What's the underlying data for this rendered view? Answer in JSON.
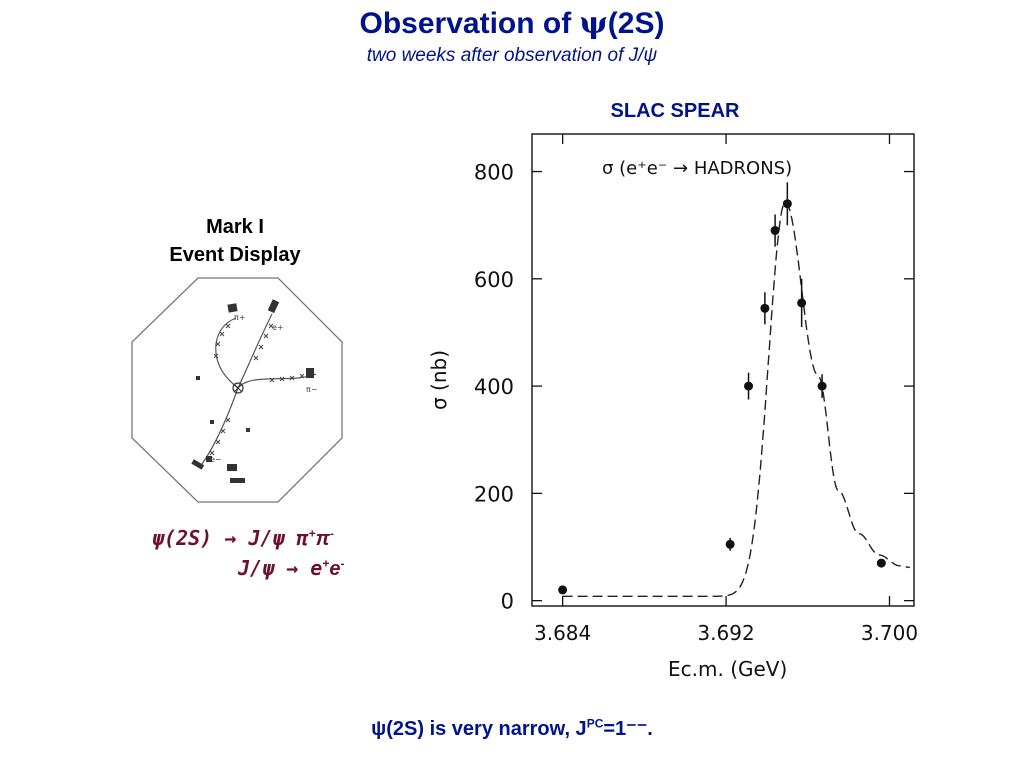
{
  "colors": {
    "title": "#00128c",
    "decay": "#6e0f2b",
    "text": "#000000"
  },
  "slide": {
    "title_main": "Observation of ",
    "title_psi": "ψ",
    "title_tail": "(2S)",
    "subtitle": "two weeks after observation of J/ψ",
    "plot_heading": "SLAC SPEAR",
    "event_label_line1": "Mark I",
    "event_label_line2": "Event Display",
    "decay_line1": "ψ(2S) → J/ψ π",
    "decay_line1_sup1": "+",
    "decay_line1_mid": "π",
    "decay_line1_sup2": "-",
    "decay_line2": "J/ψ → e",
    "decay_line2_sup1": "+",
    "decay_line2_mid": "e",
    "decay_line2_sup2": "-",
    "conclusion_main": "ψ(2S) is very narrow, J",
    "conclusion_sup": "PC",
    "conclusion_tail": "=1⁻⁻."
  },
  "event_display": {
    "labels": {
      "pi_plus": "π+",
      "e_plus": "e+",
      "pi_minus": "π−",
      "e_minus": "e−"
    }
  },
  "chart_data": {
    "type": "scatter",
    "title": "σ (e⁺e⁻ → HADRONS)",
    "xlabel": "Ec.m. (GeV)",
    "ylabel": "σ (nb)",
    "xlim": [
      3.6825,
      3.7012
    ],
    "ylim": [
      -10,
      870
    ],
    "x_ticks": [
      3.684,
      3.692,
      3.7
    ],
    "x_tick_labels": [
      "3.684",
      "3.692",
      "3.700"
    ],
    "y_ticks": [
      0,
      200,
      400,
      600,
      800
    ],
    "y_tick_labels": [
      "0",
      "200",
      "400",
      "600",
      "800"
    ],
    "grid": false,
    "points": [
      {
        "x": 3.684,
        "y": 20,
        "err": 0
      },
      {
        "x": 3.6922,
        "y": 105,
        "err": 12
      },
      {
        "x": 3.6931,
        "y": 400,
        "err": 25
      },
      {
        "x": 3.6939,
        "y": 545,
        "err": 30
      },
      {
        "x": 3.6944,
        "y": 690,
        "err": 30
      },
      {
        "x": 3.695,
        "y": 740,
        "err": 40
      },
      {
        "x": 3.6957,
        "y": 555,
        "err": 45
      },
      {
        "x": 3.6967,
        "y": 400,
        "err": 22
      },
      {
        "x": 3.6996,
        "y": 70,
        "err": 0
      }
    ],
    "fit_curve": {
      "style": "dashed",
      "baseline": 8,
      "peak_x": 3.6949,
      "peak_height": 735,
      "width": 0.00115,
      "tail_x": [
        3.6965,
        3.6975,
        3.6985,
        3.6995,
        3.7005,
        3.701
      ],
      "tail_y": [
        420,
        205,
        125,
        85,
        65,
        62
      ]
    }
  }
}
